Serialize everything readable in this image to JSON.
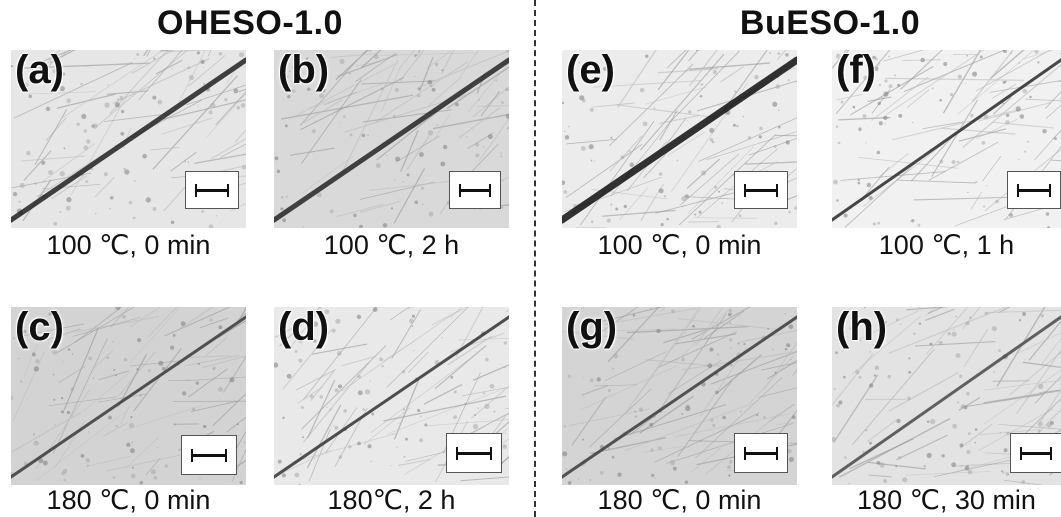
{
  "groups": {
    "left_title": "OHESO-1.0",
    "right_title": "BuESO-1.0"
  },
  "panels": [
    {
      "letter": "(a)",
      "caption": "100 ℃, 0 min",
      "tone": "#e6e6e6",
      "scratch": "#222222"
    },
    {
      "letter": "(b)",
      "caption": "100 ℃, 2 h",
      "tone": "#d9d9d9",
      "scratch": "#262626"
    },
    {
      "letter": "(c)",
      "caption": "180 ℃, 0 min",
      "tone": "#d3d3d3",
      "scratch": "#3a3a3a"
    },
    {
      "letter": "(d)",
      "caption": "180℃, 2 h",
      "tone": "#e9e9e9",
      "scratch": "#333333"
    },
    {
      "letter": "(e)",
      "caption": "100 ℃, 0 min",
      "tone": "#ececec",
      "scratch": "#111111"
    },
    {
      "letter": "(f)",
      "caption": "100 ℃, 1 h",
      "tone": "#f1f1f1",
      "scratch": "#2a2a2a"
    },
    {
      "letter": "(g)",
      "caption": "180 ℃, 0 min",
      "tone": "#d4d4d4",
      "scratch": "#3c3c3c"
    },
    {
      "letter": "(h)",
      "caption": "180 ℃, 30 min",
      "tone": "#e3e3e3",
      "scratch": "#4a4a4a"
    }
  ]
}
